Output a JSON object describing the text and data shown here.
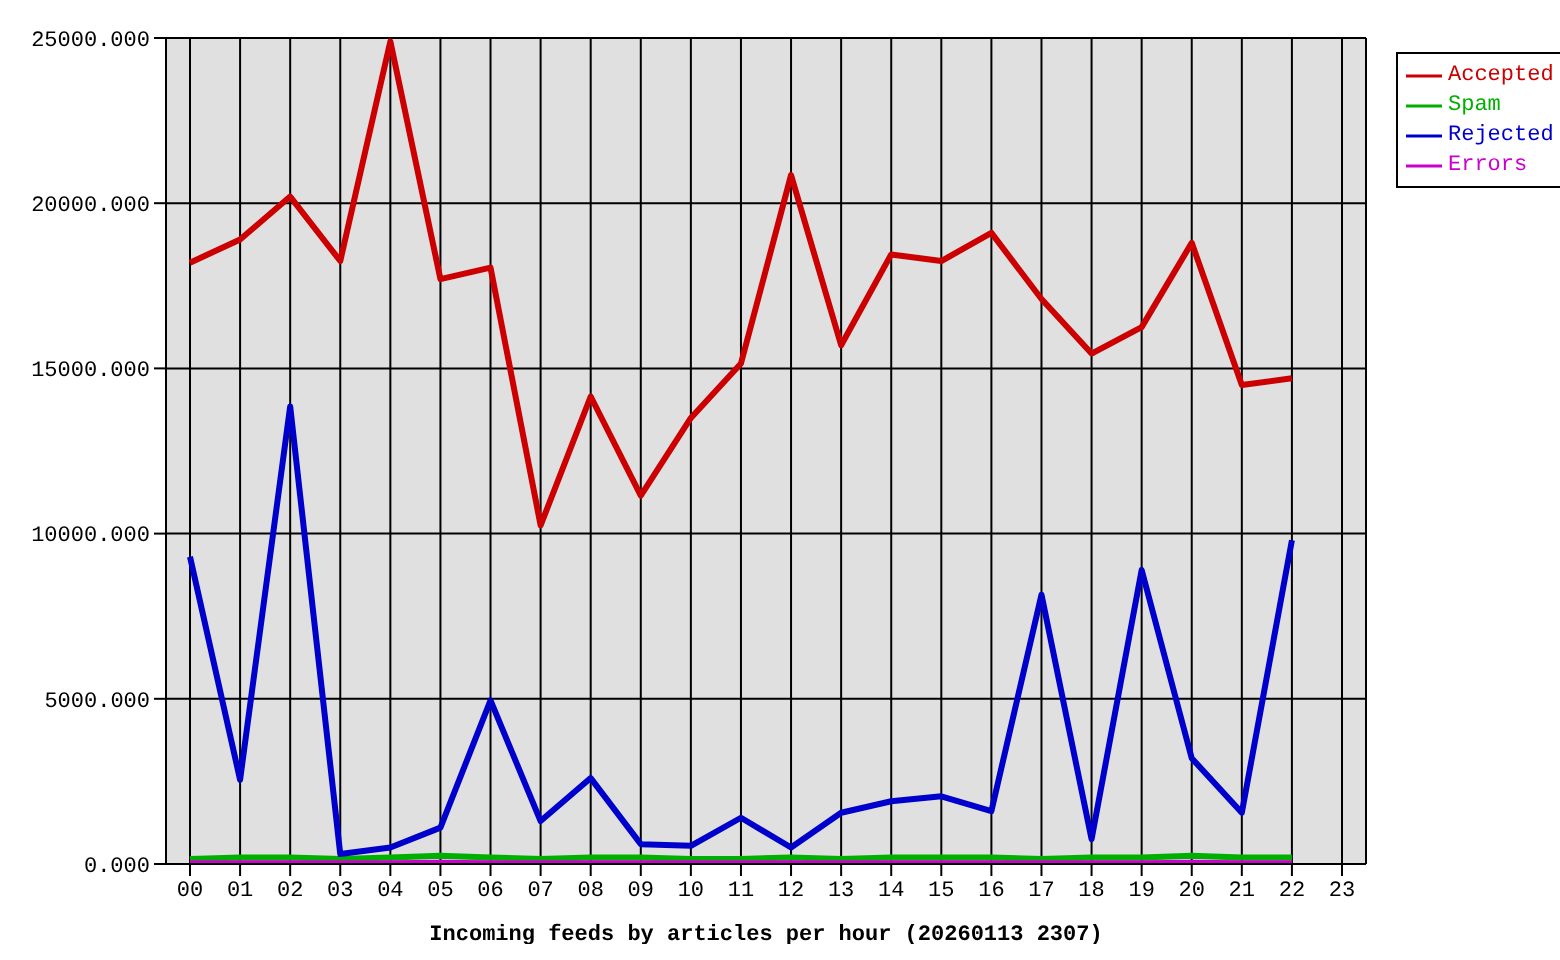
{
  "chart_data": {
    "type": "line",
    "xlabel": "Incoming feeds by articles per hour (20260113 2307)",
    "categories": [
      "00",
      "01",
      "02",
      "03",
      "04",
      "05",
      "06",
      "07",
      "08",
      "09",
      "10",
      "11",
      "12",
      "13",
      "14",
      "15",
      "16",
      "17",
      "18",
      "19",
      "20",
      "21",
      "22",
      "23"
    ],
    "series": [
      {
        "name": "Accepted",
        "color": "#cc0000",
        "values": [
          18200,
          18900,
          20200,
          18250,
          24900,
          17700,
          18050,
          10250,
          14150,
          11150,
          13500,
          15150,
          20850,
          15700,
          18450,
          18250,
          19100,
          17100,
          15450,
          16250,
          18800,
          14500,
          14700,
          null
        ]
      },
      {
        "name": "Spam",
        "color": "#00b000",
        "values": [
          150,
          200,
          200,
          150,
          200,
          250,
          200,
          150,
          200,
          200,
          150,
          150,
          200,
          150,
          200,
          200,
          200,
          150,
          200,
          200,
          250,
          200,
          200,
          null
        ]
      },
      {
        "name": "Rejected",
        "color": "#0000cc",
        "values": [
          9300,
          2550,
          13850,
          300,
          500,
          1100,
          4950,
          1300,
          2600,
          600,
          550,
          1400,
          500,
          1550,
          1900,
          2050,
          1600,
          8150,
          750,
          8900,
          3200,
          1550,
          9800,
          null
        ]
      },
      {
        "name": "Errors",
        "color": "#cc00cc",
        "values": [
          20,
          20,
          20,
          20,
          20,
          40,
          20,
          20,
          20,
          20,
          20,
          20,
          20,
          20,
          20,
          20,
          20,
          20,
          20,
          20,
          40,
          20,
          20,
          null
        ]
      }
    ],
    "ylim": [
      0,
      25000
    ],
    "yticks": [
      {
        "value": 0,
        "label": "0.000"
      },
      {
        "value": 5000,
        "label": "5000.000"
      },
      {
        "value": 10000,
        "label": "10000.000"
      },
      {
        "value": 15000,
        "label": "15000.000"
      },
      {
        "value": 20000,
        "label": "20000.000"
      },
      {
        "value": 25000,
        "label": "25000.000"
      }
    ],
    "grid": true,
    "legend": "top right",
    "marker": "none",
    "line_style": "solid"
  }
}
